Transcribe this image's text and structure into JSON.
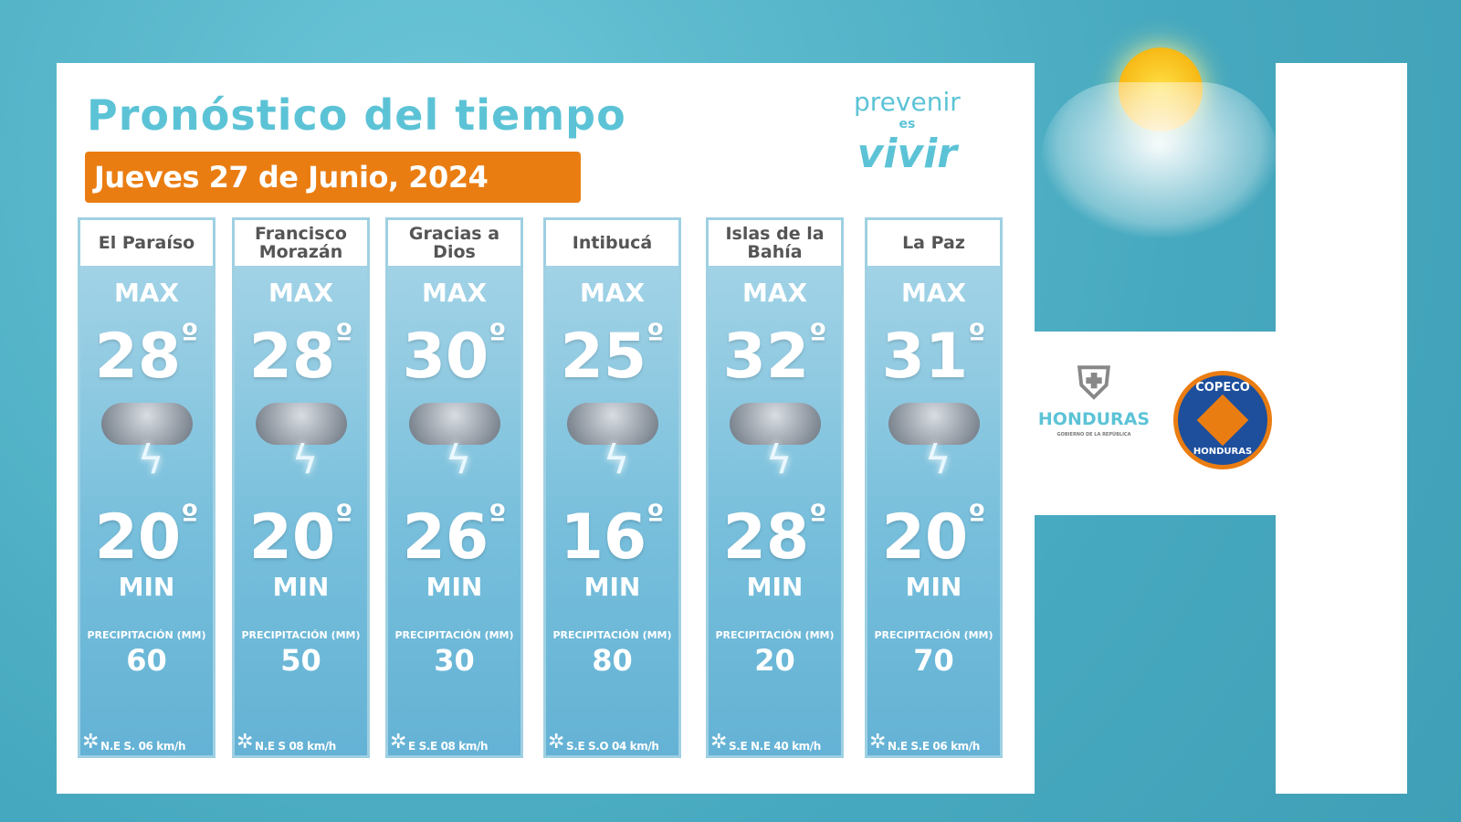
{
  "title": "Pronóstico del tiempo",
  "date": "Jueves 27 de Junio, 2024",
  "logo": {
    "line1": "prevenir",
    "line2": "es",
    "line3": "vivir"
  },
  "labels": {
    "max": "MAX",
    "min": "MIN",
    "precip": "PRECIPITACIÓN (MM)",
    "degree": "º"
  },
  "departments": [
    {
      "name": "El Paraíso",
      "max": "28",
      "min": "20",
      "precip": "60",
      "wind": "N.E  S. 06 km/h"
    },
    {
      "name": "Francisco Morazán",
      "max": "28",
      "min": "20",
      "precip": "50",
      "wind": "N.E  S  08 km/h"
    },
    {
      "name": "Gracias a Dios",
      "max": "30",
      "min": "26",
      "precip": "30",
      "wind": "E  S.E 08 km/h"
    },
    {
      "name": "Intibucá",
      "max": "25",
      "min": "16",
      "precip": "80",
      "wind": "S.E  S.O 04 km/h"
    },
    {
      "name": "Islas de la Bahía",
      "max": "32",
      "min": "28",
      "precip": "20",
      "wind": "S.E  N.E 40 km/h"
    },
    {
      "name": "La Paz",
      "max": "31",
      "min": "20",
      "precip": "70",
      "wind": "N.E S.E 06 km/h"
    }
  ],
  "honduras": {
    "name": "HONDURAS",
    "sub": "GOBIERNO DE LA REPÚBLICA"
  },
  "copeco": {
    "top": "COPECO",
    "bottom": "HONDURAS"
  },
  "colors": {
    "accent": "#5cc3d6",
    "date_bg": "#ea7d12",
    "background": "#4fb3c8"
  }
}
